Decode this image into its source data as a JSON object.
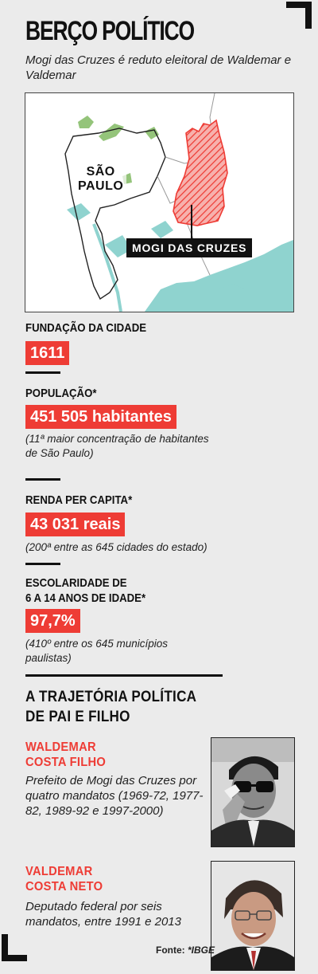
{
  "header": {
    "title": "BERÇO POLÍTICO",
    "subtitle": "Mogi das Cruzes é reduto eleitoral de Waldemar e Valdemar"
  },
  "map": {
    "city_label_line1": "SÃO",
    "city_label_line2": "PAULO",
    "highlight_label": "MOGI DAS CRUZES"
  },
  "stats": [
    {
      "label": "FUNDAÇÃO DA CIDADE",
      "value": "1611",
      "note": ""
    },
    {
      "label": "POPULAÇÃO*",
      "value": "451 505 habitantes",
      "note": "(11ª maior concentração de habitantes de São Paulo)"
    },
    {
      "label": "RENDA PER CAPITA*",
      "value": "43 031 reais",
      "note": "(200ª entre as 645 cidades do estado)"
    },
    {
      "label_line1": "ESCOLARIDADE DE",
      "label_line2": "6 A 14 ANOS DE IDADE*",
      "value": "97,7%",
      "note": "(410º entre os 645 municípios paulistas)"
    }
  ],
  "trajectory": {
    "title_line1": "A TRAJETÓRIA POLÍTICA",
    "title_line2": "DE PAI E FILHO",
    "people": [
      {
        "name_line1": "WALDEMAR",
        "name_line2": "COSTA FILHO",
        "description": "Prefeito de Mogi das Cruzes por quatro mandatos (1969-72, 1977-82, 1989-92 e 1997-2000)"
      },
      {
        "name_line1": "VALDEMAR",
        "name_line2": "COSTA NETO",
        "description": "Deputado federal por seis mandatos, entre 1991 e 2013"
      }
    ]
  },
  "source": {
    "prefix": "Fonte: ",
    "name": "*IBGE"
  },
  "colors": {
    "accent": "#ee3c35",
    "background": "#ebebeb",
    "water": "#8fd3cf",
    "park": "#94c47a"
  }
}
